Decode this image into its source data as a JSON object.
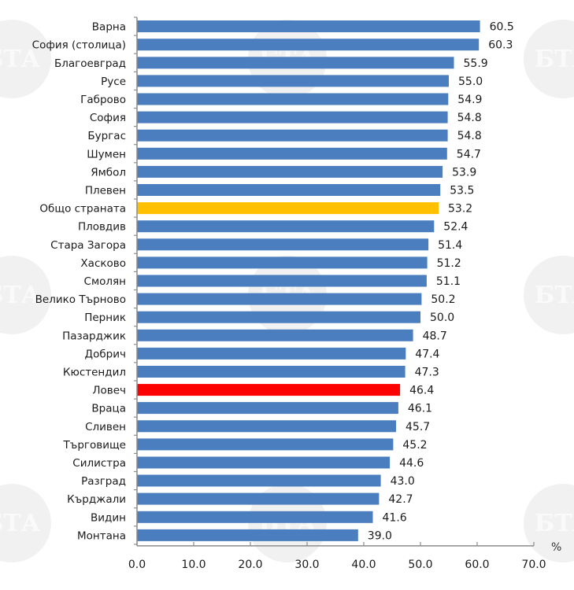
{
  "chart_data": {
    "type": "bar",
    "orientation": "horizontal",
    "title": "",
    "xlabel": "",
    "ylabel": "",
    "unit_label": "%",
    "xlim": [
      0,
      70
    ],
    "xticks": [
      0,
      10,
      20,
      30,
      40,
      50,
      60,
      70
    ],
    "xtick_labels": [
      "0.0",
      "10.0",
      "20.0",
      "30.0",
      "40.0",
      "50.0",
      "60.0",
      "70.0"
    ],
    "grid": false,
    "legend": null,
    "categories": [
      "Варна",
      "София (столица)",
      "Благоевград",
      "Русе",
      "Габрово",
      "София",
      "Бургас",
      "Шумен",
      "Ямбол",
      "Плевен",
      "Общо страната",
      "Пловдив",
      "Стара Загора",
      "Хасково",
      "Смолян",
      "Велико Търново",
      "Перник",
      "Пазарджик",
      "Добрич",
      "Кюстендил",
      "Ловеч",
      "Враца",
      "Сливен",
      "Търговище",
      "Силистра",
      "Разград",
      "Кърджали",
      "Видин",
      "Монтана"
    ],
    "values": [
      60.5,
      60.3,
      55.9,
      55.0,
      54.9,
      54.8,
      54.8,
      54.7,
      53.9,
      53.5,
      53.2,
      52.4,
      51.4,
      51.2,
      51.1,
      50.2,
      50.0,
      48.7,
      47.4,
      47.3,
      46.4,
      46.1,
      45.7,
      45.2,
      44.6,
      43.0,
      42.7,
      41.6,
      39.0
    ],
    "value_labels": [
      "60.5",
      "60.3",
      "55.9",
      "55.0",
      "54.9",
      "54.8",
      "54.8",
      "54.7",
      "53.9",
      "53.5",
      "53.2",
      "52.4",
      "51.4",
      "51.2",
      "51.1",
      "50.2",
      "50.0",
      "48.7",
      "47.4",
      "47.3",
      "46.4",
      "46.1",
      "45.7",
      "45.2",
      "44.6",
      "43.0",
      "42.7",
      "41.6",
      "39.0"
    ],
    "colors": {
      "default": "#4a7ebf",
      "highlights": {
        "Общо страната": "#ffc000",
        "Ловеч": "#ff0000"
      }
    }
  },
  "watermark": {
    "text": "БТА"
  }
}
